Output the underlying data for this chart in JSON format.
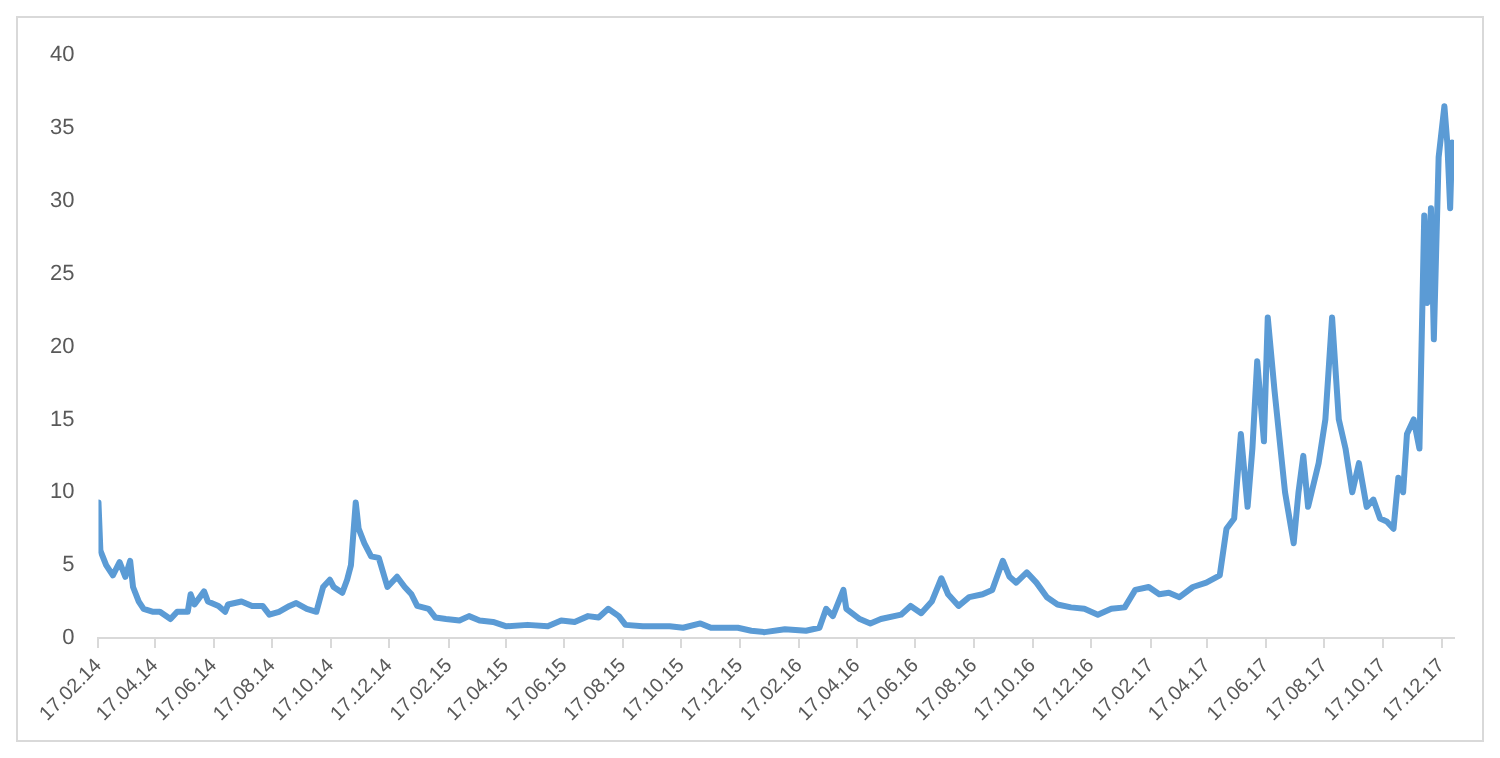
{
  "chart_data": {
    "type": "line",
    "x": [
      "2014-02-17",
      "2014-02-19",
      "2014-02-25",
      "2014-03-04",
      "2014-03-11",
      "2014-03-17",
      "2014-03-22",
      "2014-03-25",
      "2014-03-31",
      "2014-04-05",
      "2014-04-15",
      "2014-04-22",
      "2014-05-03",
      "2014-05-10",
      "2014-05-21",
      "2014-05-24",
      "2014-05-28",
      "2014-06-07",
      "2014-06-11",
      "2014-06-22",
      "2014-06-29",
      "2014-07-02",
      "2014-07-16",
      "2014-07-27",
      "2014-08-07",
      "2014-08-14",
      "2014-08-24",
      "2014-09-04",
      "2014-09-11",
      "2014-09-22",
      "2014-10-02",
      "2014-10-09",
      "2014-10-16",
      "2014-10-20",
      "2014-10-29",
      "2014-11-03",
      "2014-11-07",
      "2014-11-12",
      "2014-11-15",
      "2014-11-21",
      "2014-11-28",
      "2014-12-06",
      "2014-12-15",
      "2014-12-25",
      "2015-01-02",
      "2015-01-09",
      "2015-01-15",
      "2015-01-27",
      "2015-02-03",
      "2015-02-14",
      "2015-02-28",
      "2015-03-10",
      "2015-03-21",
      "2015-04-04",
      "2015-04-18",
      "2015-05-10",
      "2015-05-31",
      "2015-06-14",
      "2015-06-28",
      "2015-07-12",
      "2015-07-23",
      "2015-08-02",
      "2015-08-13",
      "2015-08-20",
      "2015-09-07",
      "2015-10-05",
      "2015-10-19",
      "2015-11-06",
      "2015-11-17",
      "2015-12-15",
      "2015-12-29",
      "2016-01-12",
      "2016-02-02",
      "2016-02-24",
      "2016-03-09",
      "2016-03-16",
      "2016-03-23",
      "2016-04-03",
      "2016-04-06",
      "2016-04-20",
      "2016-05-01",
      "2016-05-12",
      "2016-06-02",
      "2016-06-12",
      "2016-06-23",
      "2016-07-04",
      "2016-07-14",
      "2016-07-21",
      "2016-08-01",
      "2016-08-12",
      "2016-08-26",
      "2016-09-05",
      "2016-09-16",
      "2016-09-23",
      "2016-09-30",
      "2016-10-11",
      "2016-10-21",
      "2016-11-01",
      "2016-11-12",
      "2016-11-26",
      "2016-12-10",
      "2016-12-24",
      "2017-01-07",
      "2017-01-21",
      "2017-02-01",
      "2017-02-15",
      "2017-02-26",
      "2017-03-08",
      "2017-03-19",
      "2017-04-02",
      "2017-04-16",
      "2017-04-30",
      "2017-05-07",
      "2017-05-15",
      "2017-05-22",
      "2017-05-29",
      "2017-06-03",
      "2017-06-08",
      "2017-06-15",
      "2017-06-19",
      "2017-06-26",
      "2017-07-07",
      "2017-07-16",
      "2017-07-21",
      "2017-07-26",
      "2017-07-31",
      "2017-08-11",
      "2017-08-18",
      "2017-08-25",
      "2017-09-01",
      "2017-09-08",
      "2017-09-15",
      "2017-09-22",
      "2017-09-30",
      "2017-10-07",
      "2017-10-14",
      "2017-10-21",
      "2017-10-28",
      "2017-11-02",
      "2017-11-07",
      "2017-11-11",
      "2017-11-18",
      "2017-11-24",
      "2017-11-29",
      "2017-12-02",
      "2017-12-06",
      "2017-12-09",
      "2017-12-14",
      "2017-12-20",
      "2017-12-23",
      "2017-12-26",
      "2017-12-28"
    ],
    "series": [
      {
        "color": "#5b9bd5",
        "values": [
          9.3,
          6,
          5,
          4.3,
          5.2,
          4.2,
          5.3,
          3.5,
          2.5,
          2,
          1.8,
          1.8,
          1.3,
          1.8,
          1.8,
          3,
          2.3,
          3.2,
          2.5,
          2.2,
          1.8,
          2.3,
          2.5,
          2.2,
          2.2,
          1.6,
          1.8,
          2.2,
          2.4,
          2,
          1.8,
          3.5,
          4,
          3.5,
          3.1,
          4,
          5,
          9.3,
          7.5,
          6.5,
          5.6,
          5.5,
          3.5,
          4.2,
          3.5,
          3,
          2.2,
          2,
          1.4,
          1.3,
          1.2,
          1.5,
          1.2,
          1.1,
          0.8,
          0.9,
          0.8,
          1.2,
          1.1,
          1.5,
          1.4,
          2,
          1.5,
          0.9,
          0.8,
          0.8,
          0.7,
          1,
          0.7,
          0.7,
          0.5,
          0.4,
          0.6,
          0.5,
          0.7,
          2,
          1.5,
          3.3,
          2,
          1.3,
          1,
          1.3,
          1.6,
          2.2,
          1.7,
          2.5,
          4.1,
          3,
          2.2,
          2.8,
          3,
          3.3,
          5.3,
          4.2,
          3.8,
          4.5,
          3.8,
          2.8,
          2.3,
          2.1,
          2,
          1.6,
          2,
          2.1,
          3.3,
          3.5,
          3,
          3.1,
          2.8,
          3.5,
          3.8,
          4.3,
          7.5,
          8.2,
          14,
          9,
          13,
          19,
          13.5,
          22,
          17,
          10,
          6.5,
          10,
          12.5,
          9,
          12,
          15,
          22,
          15,
          13,
          10,
          12,
          9,
          9.5,
          8.2,
          8,
          7.5,
          11,
          10,
          14,
          15,
          13,
          29,
          23,
          29.5,
          20.5,
          33,
          36.5,
          34,
          29.5,
          34
        ]
      }
    ],
    "xlim": [
      "2014-02-17",
      "2017-12-30"
    ],
    "xticks": [
      {
        "value": "2014-02-17",
        "label": "17.02.14"
      },
      {
        "value": "2014-04-17",
        "label": "17.04.14"
      },
      {
        "value": "2014-06-17",
        "label": "17.06.14"
      },
      {
        "value": "2014-08-17",
        "label": "17.08.14"
      },
      {
        "value": "2014-10-17",
        "label": "17.10.14"
      },
      {
        "value": "2014-12-17",
        "label": "17.12.14"
      },
      {
        "value": "2015-02-17",
        "label": "17.02.15"
      },
      {
        "value": "2015-04-17",
        "label": "17.04.15"
      },
      {
        "value": "2015-06-17",
        "label": "17.06.15"
      },
      {
        "value": "2015-08-17",
        "label": "17.08.15"
      },
      {
        "value": "2015-10-17",
        "label": "17.10.15"
      },
      {
        "value": "2015-12-17",
        "label": "17.12.15"
      },
      {
        "value": "2016-02-17",
        "label": "17.02.16"
      },
      {
        "value": "2016-04-17",
        "label": "17.04.16"
      },
      {
        "value": "2016-06-17",
        "label": "17.06.16"
      },
      {
        "value": "2016-08-17",
        "label": "17.08.16"
      },
      {
        "value": "2016-10-17",
        "label": "17.10.16"
      },
      {
        "value": "2016-12-17",
        "label": "17.12.16"
      },
      {
        "value": "2017-02-17",
        "label": "17.02.17"
      },
      {
        "value": "2017-04-17",
        "label": "17.04.17"
      },
      {
        "value": "2017-06-17",
        "label": "17.06.17"
      },
      {
        "value": "2017-08-17",
        "label": "17.08.17"
      },
      {
        "value": "2017-10-17",
        "label": "17.10.17"
      },
      {
        "value": "2017-12-17",
        "label": "17.12.17"
      }
    ],
    "ylim": [
      0,
      40
    ],
    "yticks": [
      0,
      5,
      10,
      15,
      20,
      25,
      30,
      35,
      40
    ],
    "grid": false,
    "legend": false,
    "marker": "none",
    "line_style": "solid"
  }
}
